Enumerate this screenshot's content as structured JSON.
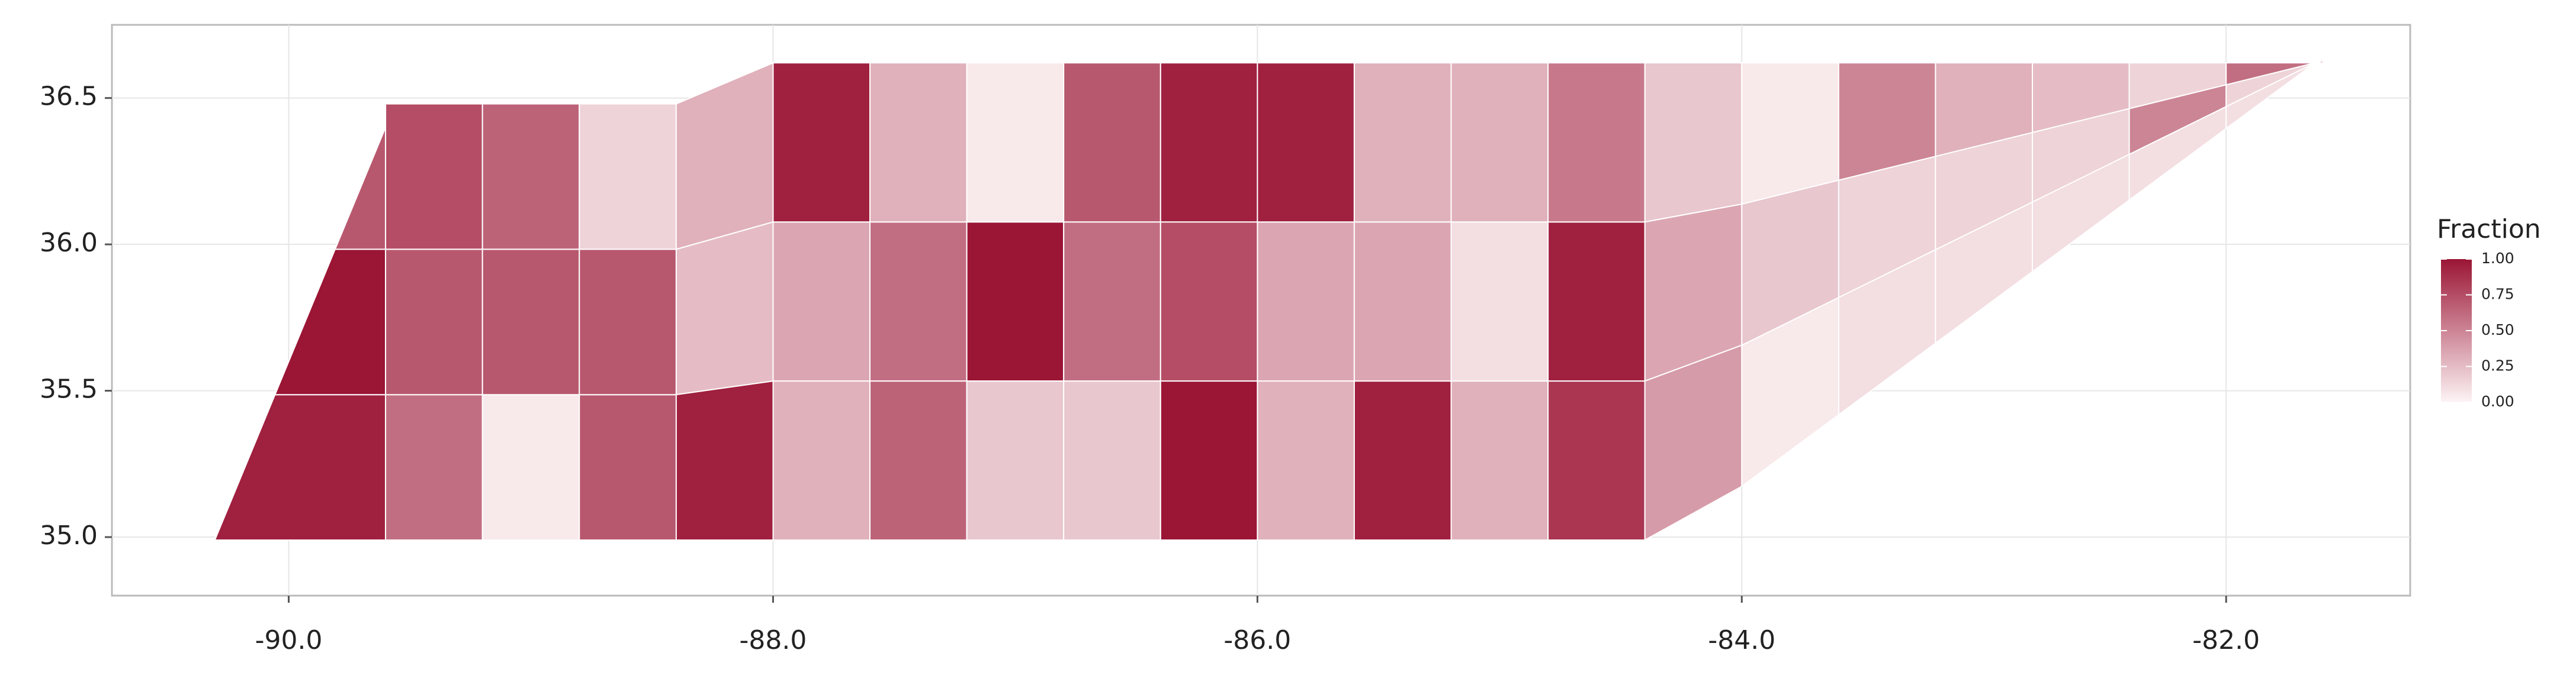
{
  "chart_data": {
    "type": "choropleth",
    "xlim": [
      -90.73,
      -81.24
    ],
    "ylim": [
      34.8,
      36.75
    ],
    "xticks": [
      {
        "value": -90,
        "label": "-90.0"
      },
      {
        "value": -88,
        "label": "-88.0"
      },
      {
        "value": -86,
        "label": "-86.0"
      },
      {
        "value": -84,
        "label": "-84.0"
      },
      {
        "value": -82,
        "label": "-82.0"
      }
    ],
    "yticks": [
      {
        "value": 35,
        "label": "35.0"
      },
      35.5,
      {
        "value": 36,
        "label": "36.0"
      },
      36.5
    ],
    "grid": true,
    "legend_title": "Fraction",
    "legend_ticks": [
      {
        "value": 0,
        "label": "0.00"
      },
      {
        "value": 0.25,
        "label": "0.25"
      },
      {
        "value": 0.5,
        "label": "0.50"
      },
      {
        "value": 0.75,
        "label": "0.75"
      },
      {
        "value": 1,
        "label": "1.00"
      }
    ],
    "low_color": "#fdf4f5",
    "high_color": "#9b1535",
    "values": [
      0.95,
      1.0,
      0.7,
      0.6,
      0.7,
      0.75,
      0.05,
      0.7,
      0.65,
      0.7,
      0.7,
      0.15,
      0.95,
      0.25,
      0.3,
      0.3,
      0.35,
      0.95,
      0.65,
      0.6,
      0.3,
      0.2,
      1.0,
      0.05,
      0.2,
      0.6,
      0.7,
      1.0,
      0.75,
      0.95,
      0.3,
      0.35,
      0.95,
      0.95,
      0.35,
      0.3,
      0.3,
      0.1,
      0.3,
      0.85,
      0.95,
      0.55,
      0.4,
      0.35,
      0.2,
      0.05,
      0.2,
      0.05,
      0.1,
      0.15,
      0.5,
      0.1,
      0.15,
      0.3,
      0.1,
      0.15,
      0.25,
      0.1,
      0.5,
      0.15,
      0.1,
      0.15,
      0.6
    ]
  }
}
